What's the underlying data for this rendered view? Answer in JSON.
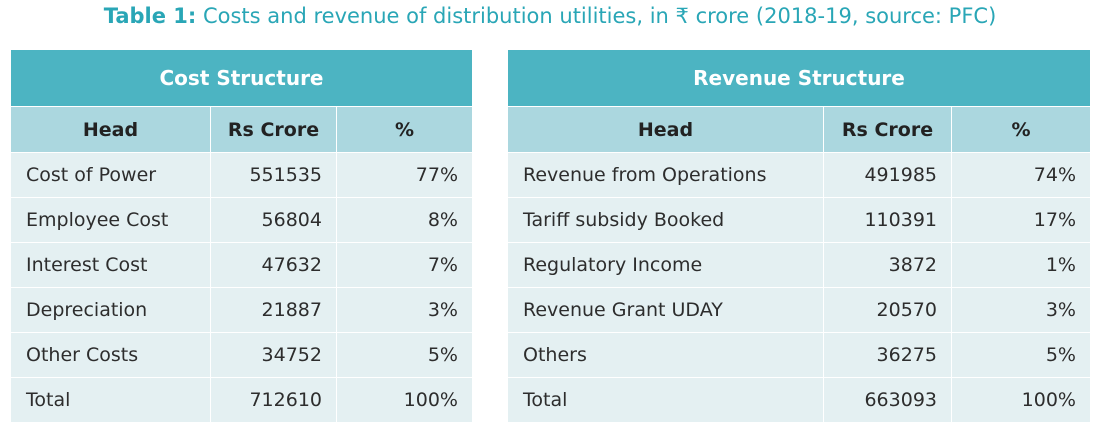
{
  "caption": {
    "label": "Table 1:",
    "text": "Costs and revenue of distribution utilities, in ₹ crore (2018-19, source: PFC)"
  },
  "cost_table": {
    "title": "Cost Structure",
    "headers": [
      "Head",
      "Rs Crore",
      "%"
    ],
    "rows": [
      [
        "Cost of Power",
        "551535",
        "77%"
      ],
      [
        "Employee Cost",
        "56804",
        "8%"
      ],
      [
        "Interest Cost",
        "47632",
        "7%"
      ],
      [
        "Depreciation",
        "21887",
        "3%"
      ],
      [
        "Other Costs",
        "34752",
        "5%"
      ],
      [
        "Total",
        "712610",
        "100%"
      ]
    ]
  },
  "revenue_table": {
    "title": "Revenue Structure",
    "headers": [
      "Head",
      "Rs Crore",
      "%"
    ],
    "rows": [
      [
        "Revenue from Operations",
        "491985",
        "74%"
      ],
      [
        "Tariff subsidy Booked",
        "110391",
        "17%"
      ],
      [
        "Regulatory Income",
        "3872",
        "1%"
      ],
      [
        "Revenue Grant UDAY",
        "20570",
        "3%"
      ],
      [
        "Others",
        "36275",
        "5%"
      ],
      [
        "Total",
        "663093",
        "100%"
      ]
    ]
  }
}
